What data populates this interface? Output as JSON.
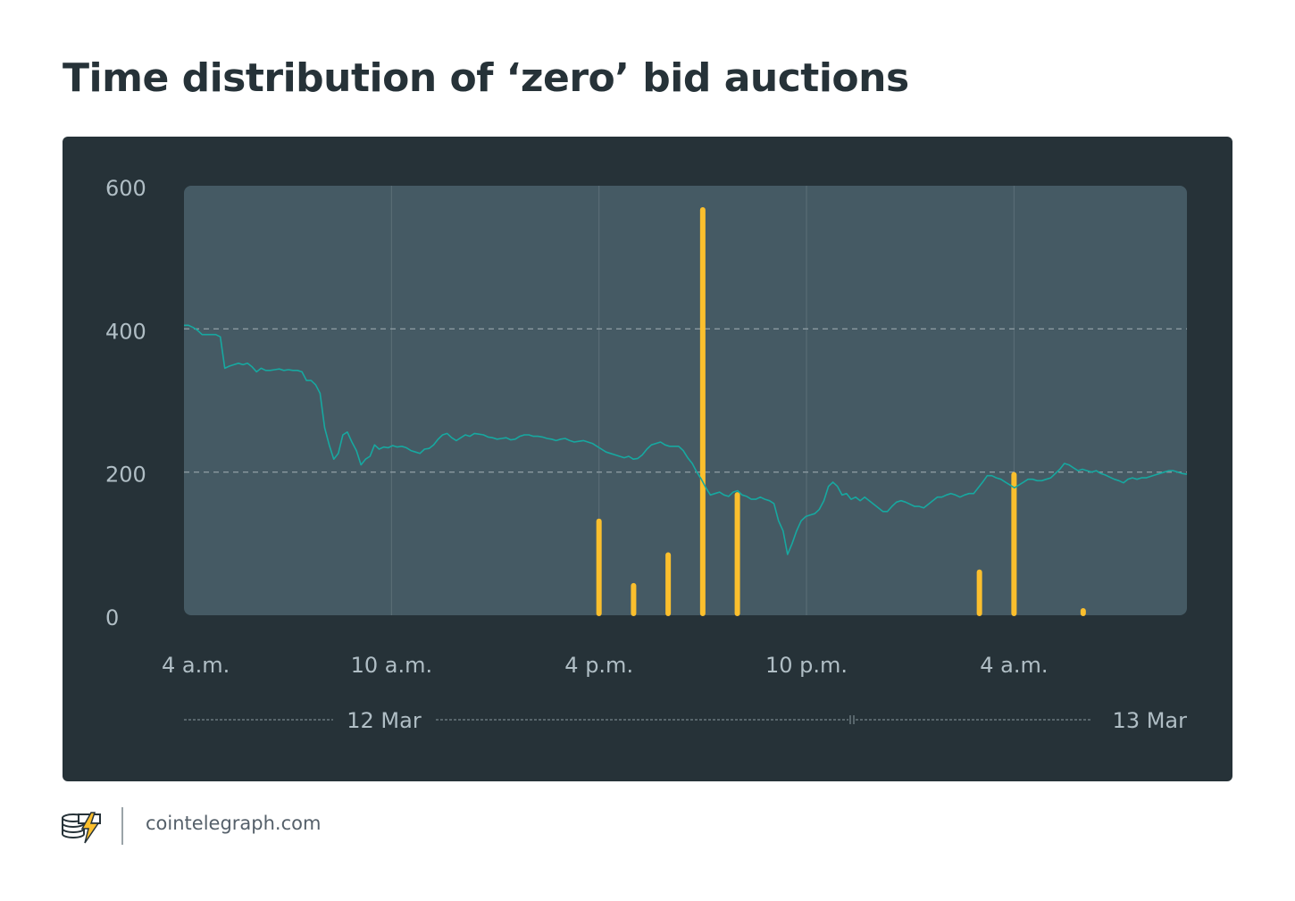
{
  "title": "Time distribution of ‘zero’ bid auctions",
  "footer": {
    "site": "cointelegraph.com",
    "logo_icon": "cointelegraph-coins-bolt-logo"
  },
  "colors": {
    "background": "#ffffff",
    "panel": "#263238",
    "plot_area": "#455a64",
    "line": "#17a8a0",
    "bars": "#fbbf2d",
    "axis_text": "#b0bec5",
    "title": "#263238"
  },
  "chart_data": {
    "type": "bar",
    "ylim": [
      0,
      600
    ],
    "y_ticks": [
      0,
      200,
      400,
      600
    ],
    "y_tick_labels": [
      "0",
      "200",
      "400",
      "600"
    ],
    "dashed_grid_y": [
      200,
      400
    ],
    "xlim": [
      "2020-03-12T04:00",
      "2020-03-13T09:00"
    ],
    "x_ticks": [
      "2020-03-12T04:00",
      "2020-03-12T10:00",
      "2020-03-12T16:00",
      "2020-03-12T22:00",
      "2020-03-13T04:00"
    ],
    "x_tick_labels": [
      "4 a.m.",
      "10 a.m.",
      "4 p.m.",
      "10 p.m.",
      "4 a.m."
    ],
    "date_labels": [
      "12 Mar",
      "13 Mar"
    ],
    "bars": [
      {
        "x": "2020-03-12T16:00",
        "value": 135
      },
      {
        "x": "2020-03-12T17:00",
        "value": 45
      },
      {
        "x": "2020-03-12T18:00",
        "value": 88
      },
      {
        "x": "2020-03-12T19:00",
        "value": 570
      },
      {
        "x": "2020-03-12T20:00",
        "value": 172
      },
      {
        "x": "2020-03-13T03:00",
        "value": 64
      },
      {
        "x": "2020-03-13T04:00",
        "value": 200
      },
      {
        "x": "2020-03-13T06:00",
        "value": 10
      }
    ],
    "line": {
      "x_start": "2020-03-12T04:00",
      "x_end": "2020-03-13T09:00",
      "values": [
        405,
        405,
        402,
        398,
        392,
        392,
        392,
        392,
        389,
        345,
        348,
        350,
        352,
        350,
        352,
        347,
        340,
        345,
        342,
        342,
        343,
        344,
        342,
        343,
        342,
        342,
        340,
        328,
        328,
        322,
        310,
        262,
        238,
        218,
        226,
        252,
        256,
        242,
        230,
        210,
        218,
        222,
        238,
        232,
        235,
        234,
        237,
        235,
        236,
        234,
        230,
        228,
        226,
        232,
        233,
        238,
        246,
        252,
        254,
        248,
        244,
        248,
        252,
        250,
        254,
        253,
        252,
        249,
        248,
        246,
        247,
        248,
        245,
        246,
        250,
        252,
        252,
        250,
        250,
        249,
        247,
        246,
        244,
        246,
        247,
        244,
        242,
        243,
        244,
        242,
        240,
        236,
        232,
        228,
        226,
        224,
        222,
        220,
        222,
        218,
        219,
        224,
        232,
        238,
        240,
        242,
        238,
        236,
        236,
        236,
        230,
        220,
        212,
        200,
        190,
        178,
        168,
        170,
        172,
        168,
        166,
        172,
        174,
        168,
        166,
        162,
        162,
        165,
        162,
        160,
        156,
        132,
        118,
        85,
        100,
        118,
        132,
        138,
        140,
        142,
        148,
        160,
        180,
        186,
        180,
        168,
        170,
        162,
        165,
        160,
        165,
        160,
        155,
        150,
        145,
        145,
        152,
        158,
        160,
        158,
        155,
        152,
        152,
        150,
        155,
        160,
        165,
        165,
        168,
        170,
        168,
        165,
        168,
        170,
        170,
        178,
        186,
        195,
        195,
        192,
        190,
        186,
        182,
        178,
        182,
        186,
        190,
        190,
        188,
        188,
        190,
        192,
        198,
        204,
        212,
        210,
        206,
        202,
        204,
        202,
        200,
        202,
        198,
        196,
        193,
        190,
        188,
        185,
        190,
        192,
        190,
        192,
        192,
        194,
        196,
        198,
        200,
        202,
        202,
        200,
        198,
        197
      ]
    }
  }
}
